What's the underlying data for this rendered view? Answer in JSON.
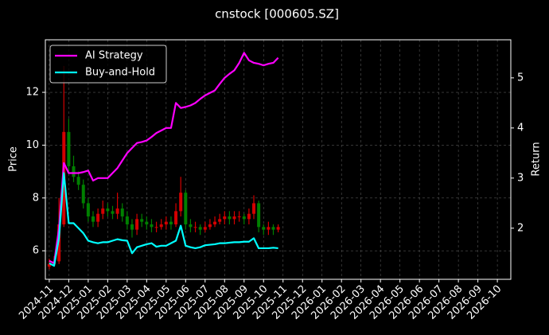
{
  "chart_data": {
    "type": "candlestick",
    "title": "cnstock [000605.SZ]",
    "y_label": "Price",
    "y2_label": "Return",
    "x": [
      0,
      0.25,
      0.5,
      0.75,
      1,
      1.25,
      1.5,
      1.75,
      2,
      2.25,
      2.5,
      2.75,
      3,
      3.25,
      3.5,
      3.75,
      4,
      4.25,
      4.5,
      4.75,
      5,
      5.25,
      5.5,
      5.75,
      6,
      6.25,
      6.5,
      6.75,
      7,
      7.25,
      7.5,
      7.75,
      8,
      8.25,
      8.5,
      8.75,
      9,
      9.25,
      9.5,
      9.75,
      10,
      10.25,
      10.5,
      10.75,
      11,
      11.25,
      11.5,
      11.75
    ],
    "open": [
      5.4,
      5.5,
      5.6,
      7.0,
      10.5,
      9.2,
      8.8,
      8.5,
      7.8,
      7.3,
      7.1,
      7.4,
      7.6,
      7.5,
      7.4,
      7.6,
      7.3,
      7.0,
      6.8,
      7.2,
      7.1,
      7.0,
      6.9,
      6.9,
      7.0,
      7.1,
      7.0,
      7.5,
      8.2,
      7.0,
      6.9,
      6.9,
      6.8,
      6.9,
      7.0,
      7.1,
      7.2,
      7.3,
      7.2,
      7.3,
      7.3,
      7.2,
      7.4,
      7.8,
      6.9,
      6.8,
      6.9,
      6.8
    ],
    "high": [
      5.7,
      5.8,
      8.0,
      13.0,
      11.0,
      9.6,
      9.0,
      8.7,
      8.0,
      7.5,
      7.6,
      7.9,
      7.8,
      7.7,
      8.2,
      7.8,
      7.5,
      7.2,
      7.4,
      7.4,
      7.3,
      7.2,
      7.1,
      7.2,
      7.3,
      7.3,
      7.8,
      8.8,
      8.3,
      7.2,
      7.1,
      7.0,
      7.1,
      7.2,
      7.3,
      7.4,
      7.5,
      7.5,
      7.5,
      7.5,
      7.4,
      7.6,
      8.1,
      7.9,
      7.0,
      7.1,
      7.0,
      7.0
    ],
    "low": [
      5.3,
      5.4,
      5.5,
      6.9,
      9.0,
      8.6,
      8.3,
      7.6,
      7.1,
      6.9,
      6.9,
      7.2,
      7.3,
      7.2,
      7.2,
      7.1,
      6.8,
      6.5,
      6.6,
      6.9,
      6.8,
      6.7,
      6.7,
      6.8,
      6.8,
      6.8,
      6.9,
      7.3,
      6.8,
      6.7,
      6.7,
      6.6,
      6.7,
      6.8,
      6.9,
      7.0,
      7.0,
      7.0,
      7.0,
      7.1,
      7.0,
      7.0,
      7.2,
      6.7,
      6.6,
      6.6,
      6.6,
      6.7
    ],
    "close": [
      5.5,
      5.6,
      7.0,
      10.5,
      9.2,
      8.8,
      8.5,
      7.8,
      7.3,
      7.1,
      7.4,
      7.6,
      7.5,
      7.4,
      7.6,
      7.3,
      7.0,
      6.8,
      7.2,
      7.1,
      7.0,
      6.9,
      6.9,
      7.0,
      7.1,
      7.0,
      7.5,
      8.2,
      7.0,
      6.9,
      6.9,
      6.8,
      6.9,
      7.0,
      7.1,
      7.2,
      7.3,
      7.2,
      7.3,
      7.3,
      7.2,
      7.4,
      7.8,
      6.9,
      6.8,
      6.9,
      6.8,
      6.9
    ],
    "up_color": "#d40000",
    "down_color": "#008000",
    "series": [
      {
        "name": "AI Strategy",
        "color": "#ff00ff",
        "axis": "y2",
        "values": [
          1.35,
          1.3,
          2.0,
          3.3,
          3.1,
          3.1,
          3.1,
          3.12,
          3.15,
          2.95,
          3.0,
          3.0,
          3.0,
          3.1,
          3.2,
          3.35,
          3.5,
          3.6,
          3.7,
          3.72,
          3.75,
          3.82,
          3.9,
          3.95,
          4.0,
          4.0,
          4.5,
          4.4,
          4.42,
          4.45,
          4.5,
          4.58,
          4.65,
          4.7,
          4.75,
          4.88,
          5.0,
          5.08,
          5.15,
          5.3,
          5.5,
          5.35,
          5.3,
          5.28,
          5.25,
          5.28,
          5.3,
          5.4
        ]
      },
      {
        "name": "Buy-and-Hold",
        "color": "#00ffff",
        "axis": "y2",
        "values": [
          1.3,
          1.25,
          1.8,
          3.1,
          2.1,
          2.1,
          2.0,
          1.9,
          1.75,
          1.72,
          1.7,
          1.72,
          1.72,
          1.75,
          1.78,
          1.76,
          1.75,
          1.5,
          1.62,
          1.65,
          1.68,
          1.7,
          1.63,
          1.65,
          1.65,
          1.7,
          1.75,
          2.05,
          1.65,
          1.62,
          1.6,
          1.62,
          1.66,
          1.67,
          1.68,
          1.7,
          1.7,
          1.71,
          1.72,
          1.72,
          1.73,
          1.73,
          1.8,
          1.6,
          1.6,
          1.6,
          1.61,
          1.6
        ]
      }
    ],
    "xlim": [
      -0.2,
      23.69
    ],
    "xticks": [
      {
        "value": 0,
        "label": "2024-11"
      },
      {
        "value": 1,
        "label": "2024-12"
      },
      {
        "value": 2,
        "label": "2025-01"
      },
      {
        "value": 3,
        "label": "2025-02"
      },
      {
        "value": 4,
        "label": "2025-03"
      },
      {
        "value": 5,
        "label": "2025-04"
      },
      {
        "value": 6,
        "label": "2025-05"
      },
      {
        "value": 7,
        "label": "2025-06"
      },
      {
        "value": 8,
        "label": "2025-07"
      },
      {
        "value": 9,
        "label": "2025-08"
      },
      {
        "value": 10,
        "label": "2025-09"
      },
      {
        "value": 11,
        "label": "2025-10"
      },
      {
        "value": 12,
        "label": "2025-11"
      },
      {
        "value": 13,
        "label": "2025-12"
      },
      {
        "value": 14,
        "label": "2026-01"
      },
      {
        "value": 15,
        "label": "2026-02"
      },
      {
        "value": 16,
        "label": "2026-03"
      },
      {
        "value": 17,
        "label": "2026-04"
      },
      {
        "value": 18,
        "label": "2026-05"
      },
      {
        "value": 19,
        "label": "2026-06"
      },
      {
        "value": 20,
        "label": "2026-07"
      },
      {
        "value": 21,
        "label": "2026-08"
      },
      {
        "value": 22,
        "label": "2026-09"
      },
      {
        "value": 23,
        "label": "2026-10"
      }
    ],
    "ylim": [
      4.92,
      13.99
    ],
    "yticks": [
      6,
      8,
      10,
      12
    ],
    "y2lim": [
      0.98,
      5.76
    ],
    "y2ticks": [
      2,
      3,
      4,
      5
    ],
    "grid": true,
    "legend": "upper left"
  }
}
